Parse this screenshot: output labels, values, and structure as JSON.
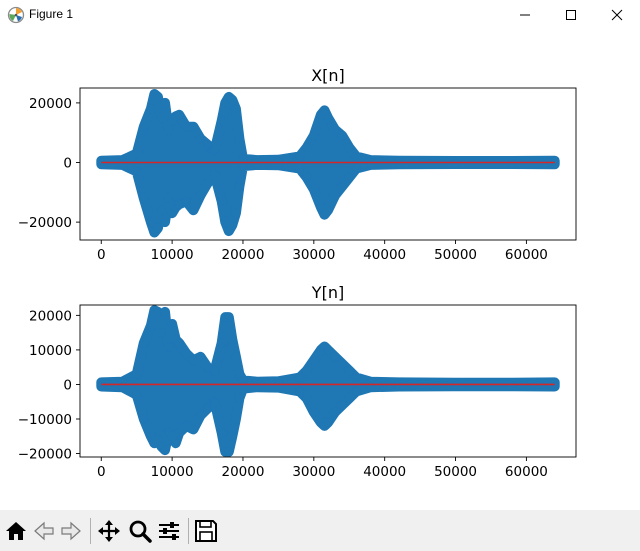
{
  "window": {
    "title": "Figure 1",
    "controls": [
      "minimize-icon",
      "maximize-icon",
      "close-icon"
    ]
  },
  "toolbar": {
    "buttons": [
      "home-icon",
      "back-icon",
      "forward-icon",
      "pan-icon",
      "zoom-icon",
      "configure-subplots-icon",
      "save-icon"
    ]
  },
  "colors": {
    "signal": "#1f77b4",
    "baseline": "#d62728",
    "toolbar_bg": "#f0f0f0"
  },
  "chart_data": [
    {
      "type": "scatter",
      "title": "X[n]",
      "xlim": [
        -3000,
        67000
      ],
      "ylim": [
        -26000,
        25000
      ],
      "x_ticks": [
        0,
        10000,
        20000,
        30000,
        40000,
        50000,
        60000
      ],
      "y_ticks": [
        -20000,
        0,
        20000
      ],
      "series": [
        {
          "x": [
            0,
            3000,
            5000,
            6000,
            7000,
            7500,
            8000,
            8500,
            9000,
            9500,
            10000,
            10500,
            11000,
            12000,
            13000,
            14000,
            15000,
            16000,
            17000,
            17500,
            18000,
            18500,
            19000,
            19500,
            20000,
            22000,
            25000,
            28000,
            29000,
            30000,
            31000,
            31500,
            32000,
            33000,
            34000,
            35000,
            36000,
            38000,
            42000,
            50000,
            58000,
            64000
          ],
          "y_max": [
            600,
            800,
            3000,
            12000,
            18000,
            23000,
            22000,
            15000,
            20000,
            11000,
            14000,
            15500,
            16000,
            12000,
            12000,
            8000,
            6000,
            4000,
            14000,
            20000,
            22000,
            21000,
            18000,
            8000,
            1200,
            800,
            900,
            2000,
            5000,
            9000,
            16000,
            17500,
            15000,
            11000,
            9000,
            5000,
            2000,
            800,
            600,
            500,
            500,
            600
          ],
          "y_min": [
            -600,
            -800,
            -3000,
            -12000,
            -20000,
            -23500,
            -22000,
            -16000,
            -20000,
            -12000,
            -17000,
            -15000,
            -14000,
            -13000,
            -16000,
            -11000,
            -7000,
            -4000,
            -13000,
            -20000,
            -23000,
            -21000,
            -17000,
            -8000,
            -1200,
            -800,
            -900,
            -2000,
            -5000,
            -9000,
            -15000,
            -17500,
            -16000,
            -11000,
            -8000,
            -5000,
            -2000,
            -800,
            -600,
            -500,
            -500,
            -600
          ]
        }
      ]
    },
    {
      "type": "scatter",
      "title": "Y[n]",
      "xlim": [
        -3000,
        67000
      ],
      "ylim": [
        -21000,
        23000
      ],
      "x_ticks": [
        0,
        10000,
        20000,
        30000,
        40000,
        50000,
        60000
      ],
      "y_ticks": [
        -20000,
        -10000,
        0,
        10000,
        20000
      ],
      "series": [
        {
          "x": [
            0,
            3000,
            5000,
            6000,
            7000,
            7500,
            8000,
            8500,
            9000,
            9500,
            10000,
            10500,
            11000,
            12000,
            13000,
            14000,
            15000,
            16000,
            17000,
            17500,
            18000,
            18500,
            19000,
            19500,
            20000,
            22000,
            25000,
            28000,
            29000,
            30000,
            31000,
            31500,
            32000,
            33000,
            34000,
            35000,
            36000,
            38000,
            42000,
            50000,
            58000,
            64000
          ],
          "y_max": [
            600,
            800,
            3000,
            12000,
            17000,
            21500,
            21000,
            15000,
            21000,
            11000,
            17500,
            13000,
            12000,
            9000,
            7000,
            8000,
            5000,
            4000,
            12000,
            19500,
            19500,
            13000,
            8000,
            3000,
            1200,
            800,
            900,
            2000,
            4000,
            7000,
            10000,
            11000,
            10000,
            8000,
            6000,
            4000,
            2000,
            800,
            600,
            500,
            500,
            600
          ],
          "y_min": [
            -600,
            -800,
            -3000,
            -10000,
            -15000,
            -17000,
            -16000,
            -18000,
            -19000,
            -14000,
            -15000,
            -17000,
            -14000,
            -12000,
            -13000,
            -9000,
            -7000,
            -5000,
            -14000,
            -19500,
            -19500,
            -15000,
            -10000,
            -4000,
            -1200,
            -800,
            -900,
            -2000,
            -4000,
            -8000,
            -11000,
            -12000,
            -11000,
            -8000,
            -6000,
            -4000,
            -2000,
            -800,
            -600,
            -500,
            -500,
            -600
          ]
        }
      ]
    }
  ]
}
